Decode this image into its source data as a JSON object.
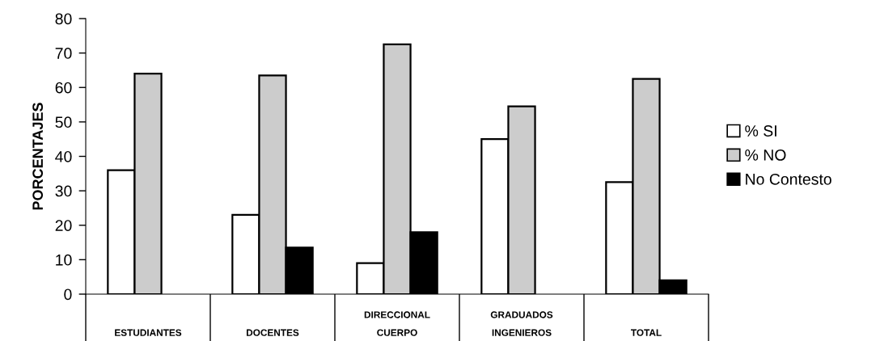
{
  "chart_data": {
    "type": "bar",
    "ylabel": "PORCENTAJES",
    "categories": [
      "ESTUDIANTES",
      "DOCENTES",
      "DIRECCIONAL\nCUERPO",
      "GRADUADOS\nINGENIEROS",
      "TOTAL"
    ],
    "series": [
      {
        "name": "% SI",
        "color": "#ffffff",
        "values": [
          36,
          23,
          9,
          45,
          32.5
        ]
      },
      {
        "name": "% NO",
        "color": "#cccccc",
        "values": [
          64,
          63.5,
          72.5,
          54.5,
          62.5
        ]
      },
      {
        "name": "No Contesto",
        "color": "#000000",
        "values": [
          null,
          13.5,
          18,
          null,
          4
        ]
      }
    ],
    "ylim": [
      0,
      80
    ],
    "yticks": [
      0,
      10,
      20,
      30,
      40,
      50,
      60,
      70,
      80
    ],
    "grid": false,
    "legend": "right"
  }
}
